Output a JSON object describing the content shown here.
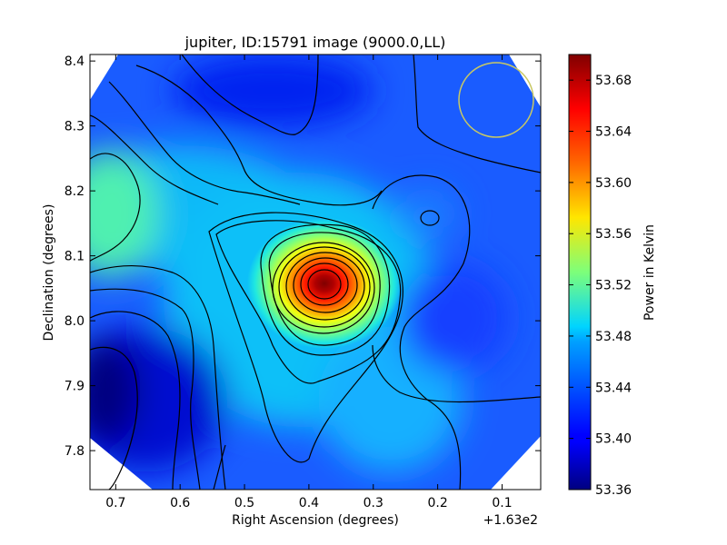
{
  "chart_data": {
    "type": "heatmap",
    "title": "jupiter, ID:15791 image (9000.0,LL)",
    "xlabel": "Right Ascension (degrees)",
    "ylabel": "Declination (degrees)",
    "x_offset_label": "+1.63e2",
    "x_ticks": [
      0.7,
      0.6,
      0.5,
      0.4,
      0.3,
      0.2,
      0.1
    ],
    "x_tick_labels": [
      "0.7",
      "0.6",
      "0.5",
      "0.4",
      "0.3",
      "0.2",
      "0.1"
    ],
    "xlim": [
      0.74,
      0.04
    ],
    "y_ticks": [
      7.8,
      7.9,
      8.0,
      8.1,
      8.2,
      8.3,
      8.4
    ],
    "y_tick_labels": [
      "7.8",
      "7.9",
      "8.0",
      "8.1",
      "8.2",
      "8.3",
      "8.4"
    ],
    "ylim": [
      7.74,
      8.41
    ],
    "colorbar": {
      "label": "Power in Kelvin",
      "range": [
        53.36,
        53.7
      ],
      "ticks": [
        53.36,
        53.4,
        53.44,
        53.48,
        53.52,
        53.56,
        53.6,
        53.64,
        53.68
      ],
      "tick_labels": [
        "53.36",
        "53.40",
        "53.44",
        "53.48",
        "53.52",
        "53.56",
        "53.60",
        "53.64",
        "53.68"
      ],
      "colormap": "jet"
    },
    "peak": {
      "ra": 0.375,
      "dec": 8.055,
      "value": 53.7
    },
    "beam_circle": {
      "ra": 0.115,
      "dec": 8.34,
      "color": "#c8c864"
    },
    "grid": false
  }
}
